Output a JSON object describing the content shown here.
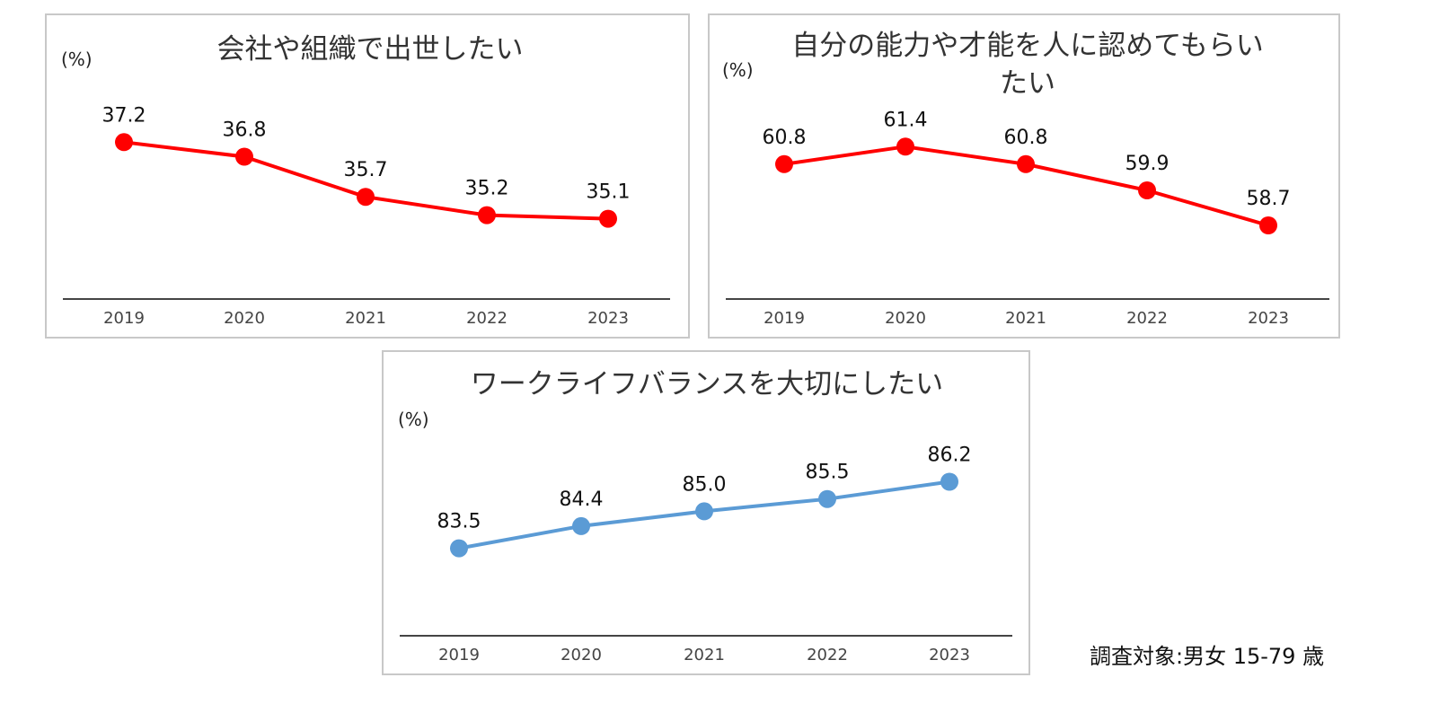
{
  "chart_data": [
    {
      "type": "line",
      "title": "会社や組織で出世したい",
      "unit_label": "(%)",
      "categories": [
        "2019",
        "2020",
        "2021",
        "2022",
        "2023"
      ],
      "values": [
        37.2,
        36.8,
        35.7,
        35.2,
        35.1
      ],
      "value_labels": [
        "37.2",
        "36.8",
        "35.7",
        "35.2",
        "35.1"
      ],
      "ylim": [
        33.0,
        37.6
      ],
      "color": "#ff0000",
      "grid": false
    },
    {
      "type": "line",
      "title_lines": [
        "自分の能力や才能を人に認めてもらい",
        "たい"
      ],
      "unit_label": "(%)",
      "categories": [
        "2019",
        "2020",
        "2021",
        "2022",
        "2023"
      ],
      "values": [
        60.8,
        61.4,
        60.8,
        59.9,
        58.7
      ],
      "value_labels": [
        "60.8",
        "61.4",
        "60.8",
        "59.9",
        "58.7"
      ],
      "ylim": [
        56.3,
        61.9
      ],
      "color": "#ff0000",
      "grid": false
    },
    {
      "type": "line",
      "title": "ワークライフバランスを大切にしたい",
      "unit_label": "(%)",
      "categories": [
        "2019",
        "2020",
        "2021",
        "2022",
        "2023"
      ],
      "values": [
        83.5,
        84.4,
        85.0,
        85.5,
        86.2
      ],
      "value_labels": [
        "83.5",
        "84.4",
        "85.0",
        "85.5",
        "86.2"
      ],
      "ylim": [
        80.1,
        86.8
      ],
      "color": "#5b9bd5",
      "grid": false
    }
  ],
  "note": "調査対象:男女 15-79 歳"
}
